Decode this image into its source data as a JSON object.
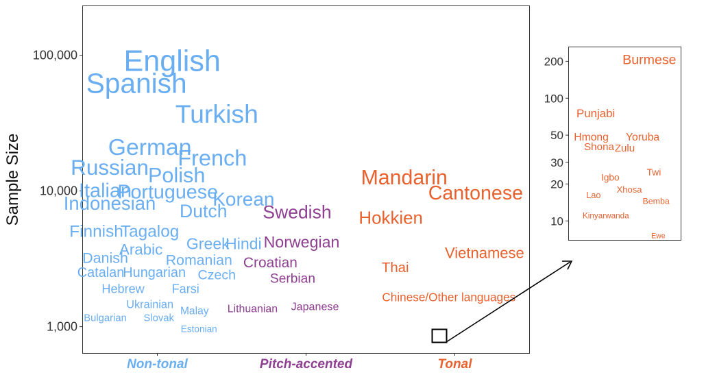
{
  "chart_data": [
    {
      "type": "word-scatter",
      "ylabel": "Sample Size",
      "yscale": "log",
      "ylim": [
        640,
        230000
      ],
      "yticks": [
        {
          "value": 1000,
          "label": "1,000"
        },
        {
          "value": 10000,
          "label": "10,000"
        },
        {
          "value": 100000,
          "label": "100,000"
        }
      ],
      "categories": [
        {
          "name": "Non-tonal",
          "color": "#6aaef2"
        },
        {
          "name": "Pitch-accented",
          "color": "#8e3f91"
        },
        {
          "name": "Tonal",
          "color": "#e8622f"
        }
      ],
      "grid": false,
      "legend": "none",
      "points": [
        {
          "label": "English",
          "group": "Non-tonal",
          "x": 0.2,
          "y": 90000
        },
        {
          "label": "Spanish",
          "group": "Non-tonal",
          "x": 0.12,
          "y": 62000
        },
        {
          "label": "Turkish",
          "group": "Non-tonal",
          "x": 0.3,
          "y": 37000
        },
        {
          "label": "German",
          "group": "Non-tonal",
          "x": 0.15,
          "y": 21000
        },
        {
          "label": "French",
          "group": "Non-tonal",
          "x": 0.29,
          "y": 17500
        },
        {
          "label": "Russian",
          "group": "Non-tonal",
          "x": 0.06,
          "y": 15000
        },
        {
          "label": "Polish",
          "group": "Non-tonal",
          "x": 0.21,
          "y": 13000
        },
        {
          "label": "Italian",
          "group": "Non-tonal",
          "x": 0.05,
          "y": 10000
        },
        {
          "label": "Portuguese",
          "group": "Non-tonal",
          "x": 0.19,
          "y": 9800
        },
        {
          "label": "Korean",
          "group": "Non-tonal",
          "x": 0.36,
          "y": 8700
        },
        {
          "label": "Indonesian",
          "group": "Non-tonal",
          "x": 0.06,
          "y": 8100
        },
        {
          "label": "Dutch",
          "group": "Non-tonal",
          "x": 0.27,
          "y": 7100
        },
        {
          "label": "Finnish",
          "group": "Non-tonal",
          "x": 0.03,
          "y": 5000
        },
        {
          "label": "Tagalog",
          "group": "Non-tonal",
          "x": 0.15,
          "y": 5000
        },
        {
          "label": "Greek",
          "group": "Non-tonal",
          "x": 0.28,
          "y": 4100
        },
        {
          "label": "Hindi",
          "group": "Non-tonal",
          "x": 0.36,
          "y": 4100
        },
        {
          "label": "Arabic",
          "group": "Non-tonal",
          "x": 0.13,
          "y": 3700
        },
        {
          "label": "Danish",
          "group": "Non-tonal",
          "x": 0.05,
          "y": 3200
        },
        {
          "label": "Romanian",
          "group": "Non-tonal",
          "x": 0.26,
          "y": 3100
        },
        {
          "label": "Catalan",
          "group": "Non-tonal",
          "x": 0.04,
          "y": 2500
        },
        {
          "label": "Hungarian",
          "group": "Non-tonal",
          "x": 0.16,
          "y": 2500
        },
        {
          "label": "Czech",
          "group": "Non-tonal",
          "x": 0.3,
          "y": 2400
        },
        {
          "label": "Hebrew",
          "group": "Non-tonal",
          "x": 0.09,
          "y": 1900
        },
        {
          "label": "Farsi",
          "group": "Non-tonal",
          "x": 0.23,
          "y": 1900
        },
        {
          "label": "Ukrainian",
          "group": "Non-tonal",
          "x": 0.15,
          "y": 1450
        },
        {
          "label": "Malay",
          "group": "Non-tonal",
          "x": 0.25,
          "y": 1300
        },
        {
          "label": "Bulgarian",
          "group": "Non-tonal",
          "x": 0.05,
          "y": 1150
        },
        {
          "label": "Slovak",
          "group": "Non-tonal",
          "x": 0.17,
          "y": 1150
        },
        {
          "label": "Estonian",
          "group": "Non-tonal",
          "x": 0.26,
          "y": 960
        },
        {
          "label": "Swedish",
          "group": "Pitch-accented",
          "x": 0.48,
          "y": 7000
        },
        {
          "label": "Norwegian",
          "group": "Pitch-accented",
          "x": 0.49,
          "y": 4200
        },
        {
          "label": "Croatian",
          "group": "Pitch-accented",
          "x": 0.42,
          "y": 2950
        },
        {
          "label": "Serbian",
          "group": "Pitch-accented",
          "x": 0.47,
          "y": 2250
        },
        {
          "label": "Lithuanian",
          "group": "Pitch-accented",
          "x": 0.38,
          "y": 1350
        },
        {
          "label": "Japanese",
          "group": "Pitch-accented",
          "x": 0.52,
          "y": 1400
        },
        {
          "label": "Mandarin",
          "group": "Tonal",
          "x": 0.72,
          "y": 12500
        },
        {
          "label": "Cantonese",
          "group": "Tonal",
          "x": 0.88,
          "y": 9600
        },
        {
          "label": "Hokkien",
          "group": "Tonal",
          "x": 0.69,
          "y": 6300
        },
        {
          "label": "Vietnamese",
          "group": "Tonal",
          "x": 0.9,
          "y": 3500
        },
        {
          "label": "Thai",
          "group": "Tonal",
          "x": 0.7,
          "y": 2700
        },
        {
          "label": "Chinese/Other languages",
          "group": "Tonal",
          "x": 0.82,
          "y": 1650
        }
      ]
    },
    {
      "type": "word-scatter",
      "title": "",
      "yscale": "log",
      "ylim": [
        7,
        260
      ],
      "yticks": [
        {
          "value": 10,
          "label": "10"
        },
        {
          "value": 20,
          "label": "20"
        },
        {
          "value": 30,
          "label": "30"
        },
        {
          "value": 50,
          "label": "50"
        },
        {
          "value": 100,
          "label": "100"
        },
        {
          "value": 200,
          "label": "200"
        }
      ],
      "grid": false,
      "legend": "none",
      "points": [
        {
          "label": "Burmese",
          "group": "Tonal",
          "x": 0.72,
          "y": 205
        },
        {
          "label": "Punjabi",
          "group": "Tonal",
          "x": 0.24,
          "y": 75
        },
        {
          "label": "Hmong",
          "group": "Tonal",
          "x": 0.2,
          "y": 48
        },
        {
          "label": "Yoruba",
          "group": "Tonal",
          "x": 0.66,
          "y": 48
        },
        {
          "label": "Shona",
          "group": "Tonal",
          "x": 0.27,
          "y": 40
        },
        {
          "label": "Zulu",
          "group": "Tonal",
          "x": 0.5,
          "y": 39
        },
        {
          "label": "Twi",
          "group": "Tonal",
          "x": 0.76,
          "y": 25
        },
        {
          "label": "Igbo",
          "group": "Tonal",
          "x": 0.37,
          "y": 22.5
        },
        {
          "label": "Xhosa",
          "group": "Tonal",
          "x": 0.54,
          "y": 18
        },
        {
          "label": "Lao",
          "group": "Tonal",
          "x": 0.22,
          "y": 16.2
        },
        {
          "label": "Bemba",
          "group": "Tonal",
          "x": 0.78,
          "y": 14.5
        },
        {
          "label": "Kinyarwanda",
          "group": "Tonal",
          "x": 0.33,
          "y": 11
        },
        {
          "label": "Ewe",
          "group": "Tonal",
          "x": 0.8,
          "y": 7.5
        }
      ]
    }
  ]
}
